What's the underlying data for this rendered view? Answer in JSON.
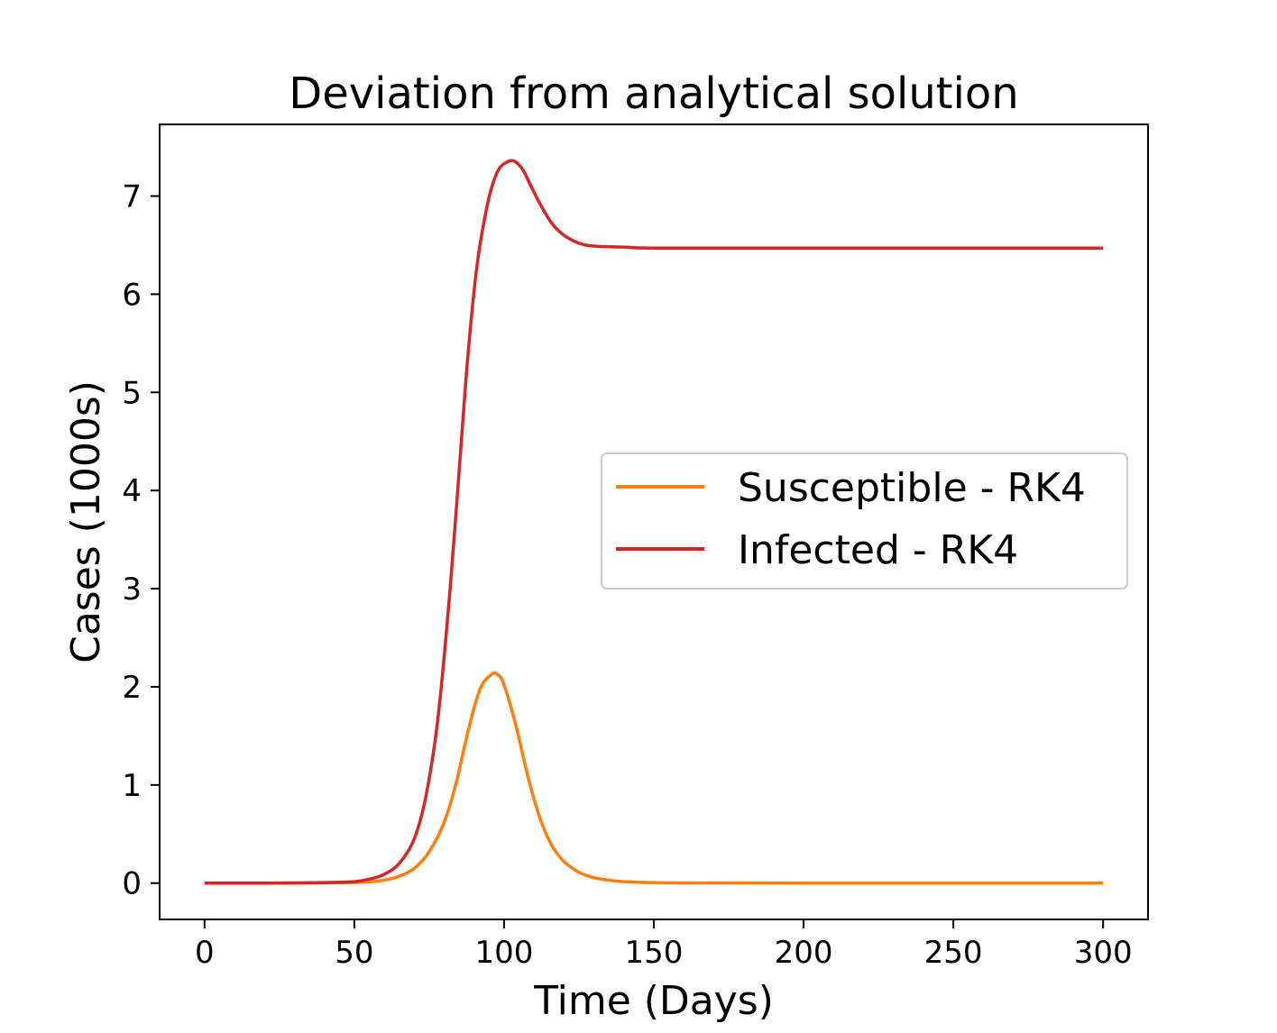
{
  "chart_data": {
    "type": "line",
    "title": "Deviation from analytical solution",
    "xlabel": "Time (Days)",
    "ylabel": "Cases (1000s)",
    "xlim": [
      -15,
      315
    ],
    "ylim": [
      -0.37,
      7.73
    ],
    "xticks": [
      0,
      50,
      100,
      150,
      200,
      250,
      300
    ],
    "xtick_labels": [
      "0",
      "50",
      "100",
      "150",
      "200",
      "250",
      "300"
    ],
    "yticks": [
      0,
      1,
      2,
      3,
      4,
      5,
      6,
      7
    ],
    "ytick_labels": [
      "0",
      "1",
      "2",
      "3",
      "4",
      "5",
      "6",
      "7"
    ],
    "grid": false,
    "legend_position": "center-right",
    "series": [
      {
        "name": "Susceptible - RK4",
        "color": "#ff7f0e",
        "x": [
          0,
          20,
          40,
          50,
          55,
          60,
          65,
          70,
          75,
          80,
          84,
          88,
          92,
          96,
          98,
          100,
          104,
          108,
          112,
          116,
          120,
          125,
          130,
          135,
          140,
          150,
          160,
          200,
          250,
          300
        ],
        "y": [
          0,
          0,
          0.002,
          0.006,
          0.012,
          0.03,
          0.07,
          0.15,
          0.32,
          0.62,
          1.02,
          1.55,
          1.98,
          2.13,
          2.12,
          2.02,
          1.6,
          1.08,
          0.66,
          0.38,
          0.22,
          0.11,
          0.055,
          0.03,
          0.015,
          0.005,
          0.002,
          0.0,
          0.0,
          0.0
        ]
      },
      {
        "name": "Infected - RK4",
        "color": "#d62728",
        "x": [
          0,
          20,
          40,
          50,
          55,
          60,
          65,
          70,
          74,
          78,
          82,
          85,
          88,
          91,
          94,
          96,
          98,
          100,
          103,
          106,
          109,
          112,
          116,
          120,
          125,
          130,
          140,
          150,
          200,
          250,
          300
        ],
        "y": [
          0,
          0,
          0.005,
          0.015,
          0.04,
          0.09,
          0.2,
          0.45,
          0.9,
          1.7,
          3.0,
          4.2,
          5.4,
          6.3,
          6.85,
          7.1,
          7.26,
          7.33,
          7.36,
          7.28,
          7.1,
          6.92,
          6.72,
          6.6,
          6.52,
          6.49,
          6.48,
          6.47,
          6.47,
          6.47,
          6.47
        ]
      }
    ]
  }
}
